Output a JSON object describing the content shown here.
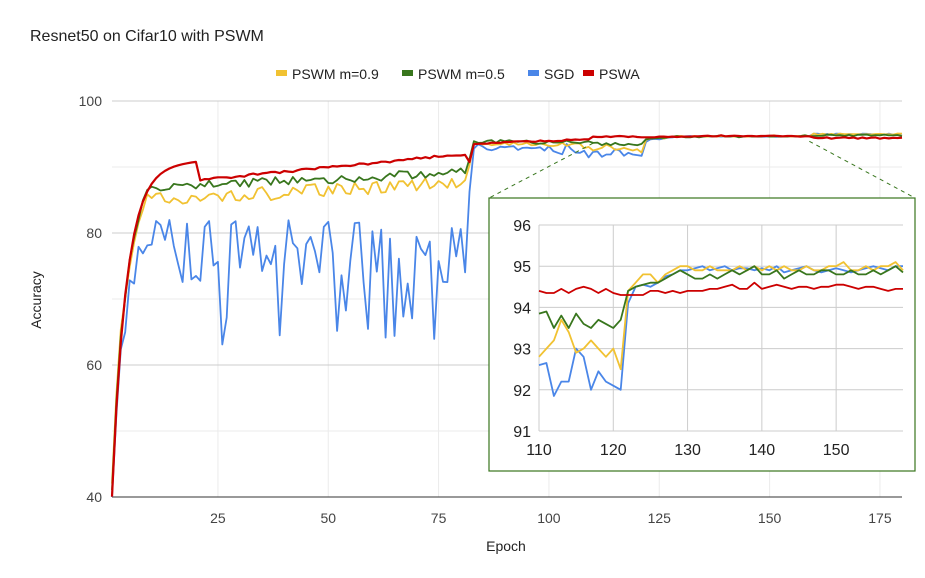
{
  "chart_data": {
    "type": "line",
    "title": "Resnet50 on Cifar10 with PSWM",
    "xlabel": "Epoch",
    "ylabel": "Accuracy",
    "xlim": [
      1,
      180
    ],
    "ylim": [
      40,
      100
    ],
    "x_ticks": [
      25,
      50,
      75,
      100,
      125,
      150,
      175
    ],
    "y_ticks": [
      40,
      60,
      80,
      100
    ],
    "legend_position": "top-center",
    "grid": true,
    "series": [
      {
        "name": "PSWM m=0.9",
        "color": "#f1c232",
        "legend_label": "PSWM m=0.9"
      },
      {
        "name": "PSWM m=0.5",
        "color": "#38761d",
        "legend_label": "PSWM m=0.5"
      },
      {
        "name": "SGD",
        "color": "#4a86e8",
        "legend_label": "SGD"
      },
      {
        "name": "PSWA",
        "color": "#cc0000",
        "legend_label": "PSWA"
      }
    ],
    "inset": {
      "description": "zoomed view",
      "xlim": [
        110,
        159
      ],
      "ylim": [
        91,
        96
      ],
      "x_ticks": [
        110,
        120,
        130,
        140,
        150
      ],
      "y_ticks": [
        91,
        92,
        93,
        94,
        95,
        96
      ],
      "border_color": "#38761d"
    }
  }
}
